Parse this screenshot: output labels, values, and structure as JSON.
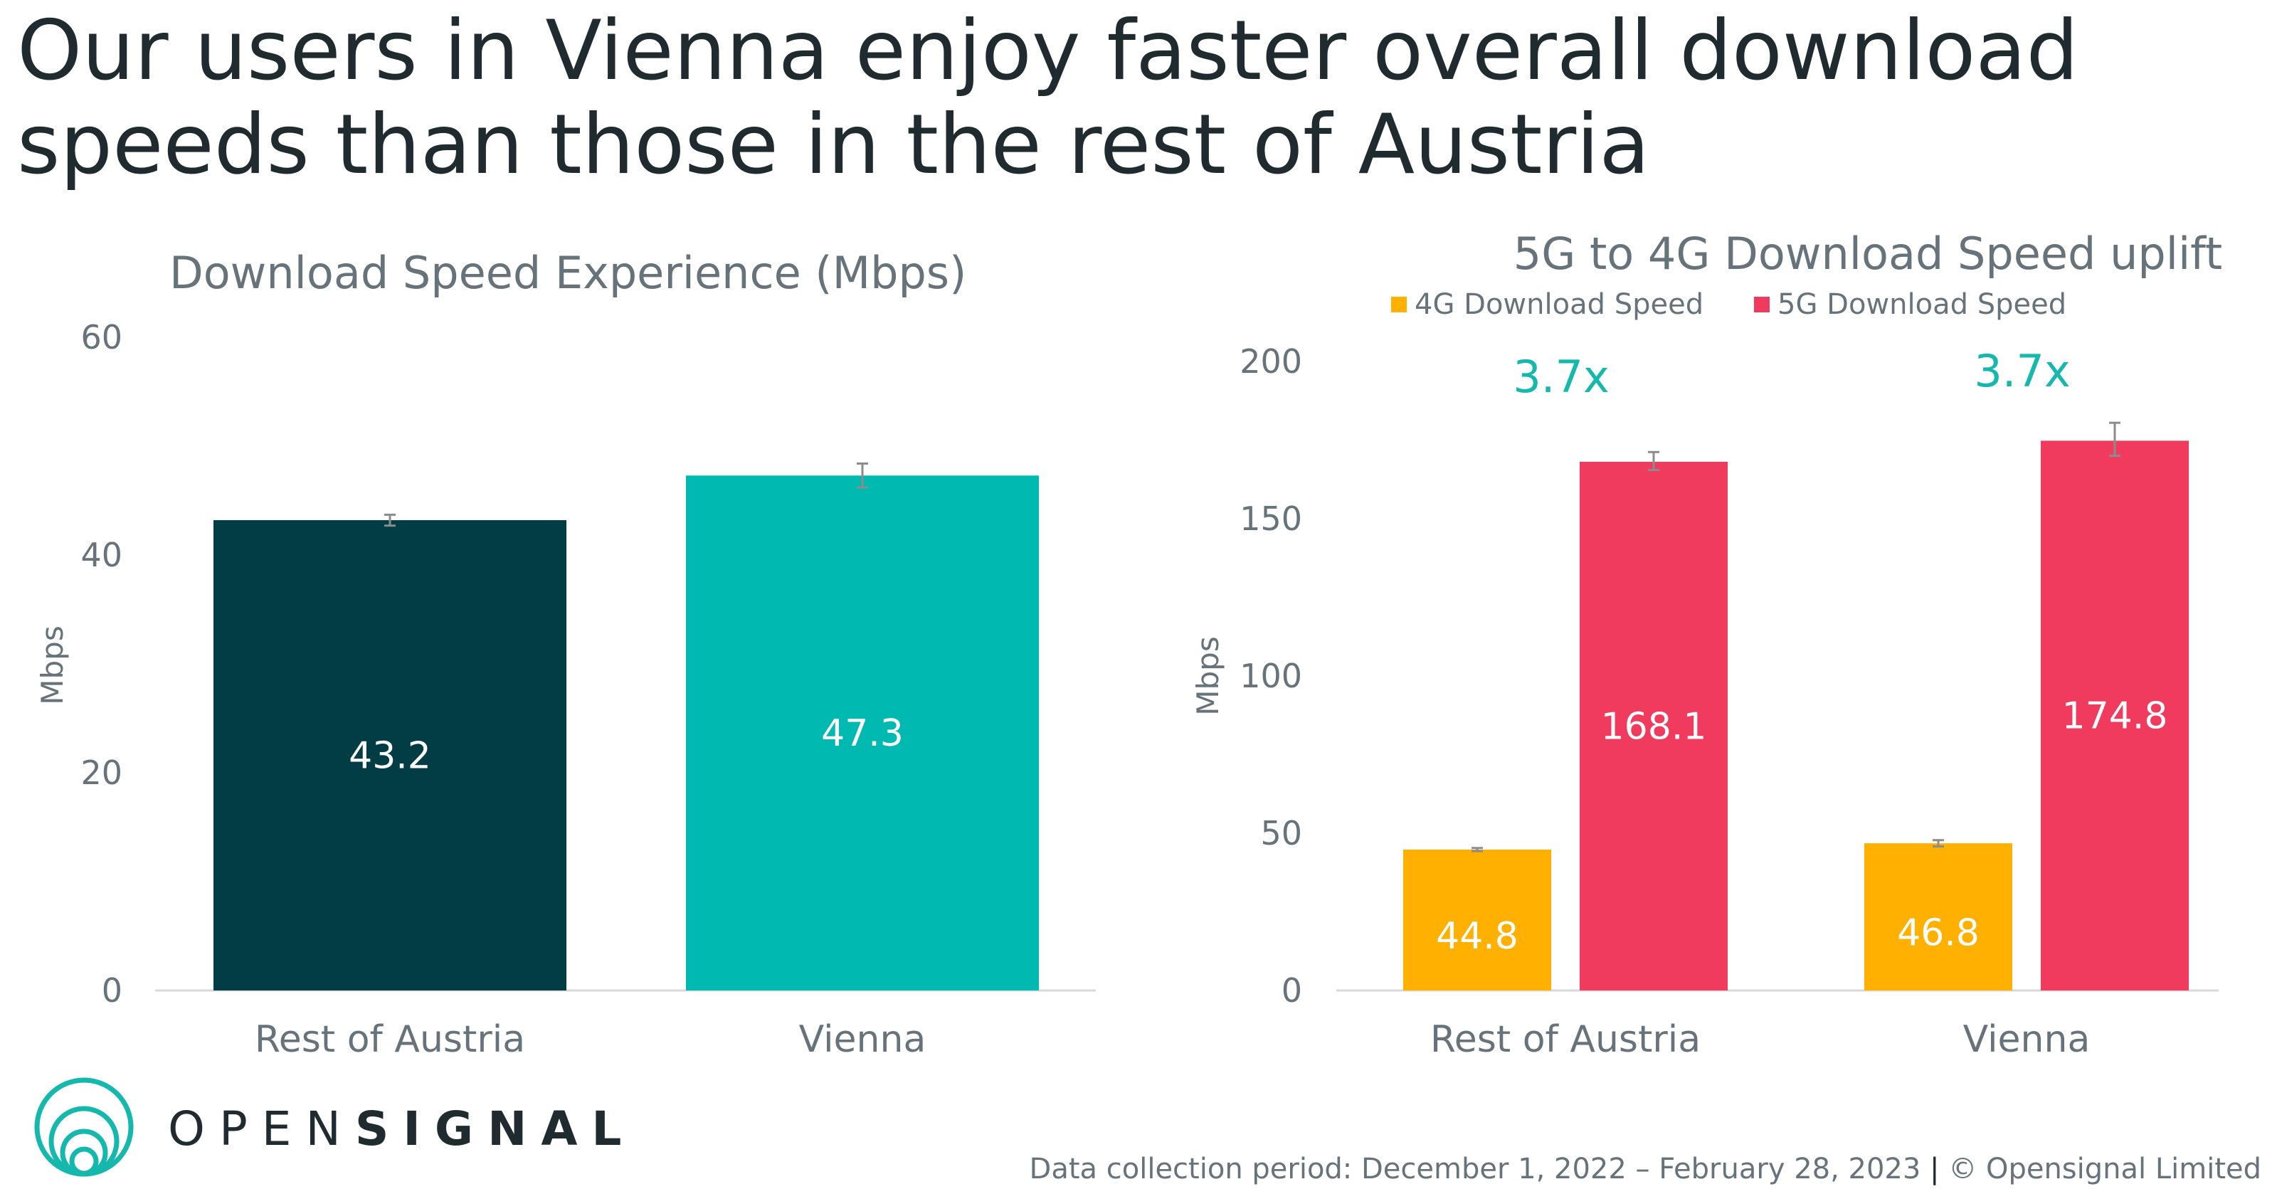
{
  "headline": "Our users in Vienna enjoy faster overall download speeds than those in the rest of Austria",
  "colors": {
    "rest_of_austria": "#023c45",
    "vienna": "#00bab2",
    "g4": "#ffb000",
    "g5": "#f03b5f",
    "uplift_text": "#14b8ad",
    "axis_text": "#66737a"
  },
  "chart_data": [
    {
      "type": "bar",
      "title": "Download Speed Experience (Mbps)",
      "ylabel": "Mbps",
      "xlabel": "",
      "ylim": [
        0,
        60
      ],
      "yticks": [
        0,
        20,
        40,
        60
      ],
      "categories": [
        "Rest of Austria",
        "Vienna"
      ],
      "values": [
        43.2,
        47.3
      ],
      "value_labels": [
        "43.2",
        "47.3"
      ],
      "error_low": [
        42.7,
        46.2
      ],
      "error_high": [
        43.7,
        48.4
      ],
      "grid": false
    },
    {
      "type": "bar",
      "title": "5G to 4G Download Speed uplift",
      "ylabel": "Mbps",
      "xlabel": "",
      "ylim": [
        0,
        200
      ],
      "yticks": [
        0,
        50,
        100,
        150,
        200
      ],
      "categories": [
        "Rest of Austria",
        "Vienna"
      ],
      "legend_position": "top",
      "series": [
        {
          "name": "4G Download Speed",
          "values": [
            44.8,
            46.8
          ],
          "value_labels": [
            "44.8",
            "46.8"
          ],
          "error_low": [
            44.3,
            45.8
          ],
          "error_high": [
            45.3,
            47.8
          ]
        },
        {
          "name": "5G Download Speed",
          "values": [
            168.1,
            174.8
          ],
          "value_labels": [
            "168.1",
            "174.8"
          ],
          "error_low": [
            165.5,
            170.0
          ],
          "error_high": [
            171.2,
            180.5
          ]
        }
      ],
      "annotations": [
        "3.7x",
        "3.7x"
      ],
      "grid": false
    }
  ],
  "logo": {
    "text_light": "OPEN",
    "text_bold": "SIGNAL"
  },
  "footer": {
    "period": "Data collection period: December 1, 2022 – February 28, 2023",
    "separator": "|",
    "copyright": "© Opensignal Limited"
  }
}
